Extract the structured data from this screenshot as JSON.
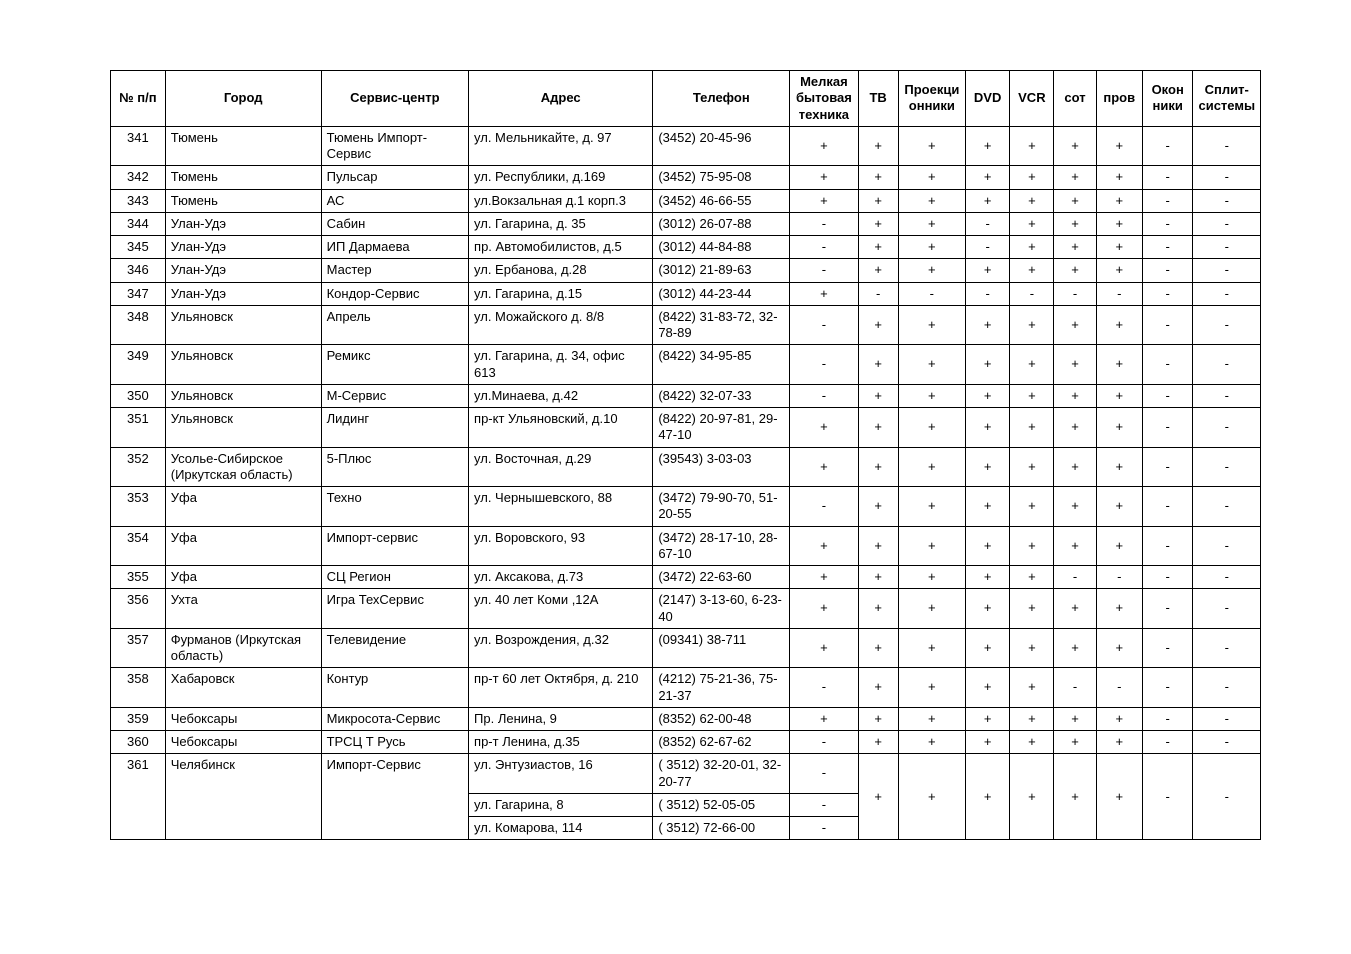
{
  "columns": [
    {
      "key": "n",
      "label": "№ п/п",
      "align": "center"
    },
    {
      "key": "city",
      "label": "Город",
      "align": "center"
    },
    {
      "key": "service",
      "label": "Сервис-центр",
      "align": "center"
    },
    {
      "key": "address",
      "label": "Адрес",
      "align": "center"
    },
    {
      "key": "phone",
      "label": "Телефон",
      "align": "center"
    },
    {
      "key": "small",
      "label": "Мелкая бытовая техника",
      "align": "center"
    },
    {
      "key": "tv",
      "label": "ТВ",
      "align": "center"
    },
    {
      "key": "proj",
      "label": "Проекци онники",
      "align": "center"
    },
    {
      "key": "dvd",
      "label": "DVD",
      "align": "center"
    },
    {
      "key": "vcr",
      "label": "VCR",
      "align": "center"
    },
    {
      "key": "sot",
      "label": "сот",
      "align": "center"
    },
    {
      "key": "prov",
      "label": "пров",
      "align": "center"
    },
    {
      "key": "okon",
      "label": "Окон ники",
      "align": "center"
    },
    {
      "key": "split",
      "label": "Сплит-системы",
      "align": "left"
    }
  ],
  "rows": [
    {
      "n": "341",
      "city": "Тюмень",
      "service": "Тюмень Импорт-Сервис",
      "address": "ул. Мельникайте, д. 97",
      "phone": "(3452) 20-45-96",
      "small": "+",
      "tv": "+",
      "proj": "+",
      "dvd": "+",
      "vcr": "+",
      "sot": "+",
      "prov": "+",
      "okon": "-",
      "split": "-"
    },
    {
      "n": "342",
      "city": "Тюмень",
      "service": "Пульсар",
      "address": "ул. Республики, д.169",
      "phone": "(3452) 75-95-08",
      "small": "+",
      "tv": "+",
      "proj": "+",
      "dvd": "+",
      "vcr": "+",
      "sot": "+",
      "prov": "+",
      "okon": "-",
      "split": "-"
    },
    {
      "n": "343",
      "city": "Тюмень",
      "service": "АС",
      "address": "ул.Вокзальная д.1 корп.3",
      "phone": "(3452) 46-66-55",
      "small": "+",
      "tv": "+",
      "proj": "+",
      "dvd": "+",
      "vcr": "+",
      "sot": "+",
      "prov": "+",
      "okon": "-",
      "split": "-"
    },
    {
      "n": "344",
      "city": "Улан-Удэ",
      "service": "Сабин",
      "address": "ул. Гагарина, д. 35",
      "phone": "(3012) 26-07-88",
      "small": "-",
      "tv": "+",
      "proj": "+",
      "dvd": "-",
      "vcr": "+",
      "sot": "+",
      "prov": "+",
      "okon": "-",
      "split": "-"
    },
    {
      "n": "345",
      "city": "Улан-Удэ",
      "service": "ИП Дармаева",
      "address": "пр. Автомобилистов, д.5",
      "phone": "(3012) 44-84-88",
      "small": "-",
      "tv": "+",
      "proj": "+",
      "dvd": "-",
      "vcr": "+",
      "sot": "+",
      "prov": "+",
      "okon": "-",
      "split": "-"
    },
    {
      "n": "346",
      "city": "Улан-Удэ",
      "service": "Мастер",
      "address": "ул. Ербанова, д.28",
      "phone": "(3012) 21-89-63",
      "small": "-",
      "tv": "+",
      "proj": "+",
      "dvd": "+",
      "vcr": "+",
      "sot": "+",
      "prov": "+",
      "okon": "-",
      "split": "-"
    },
    {
      "n": "347",
      "city": "Улан-Удэ",
      "service": "Кондор-Сервис",
      "address": "ул. Гагарина, д.15",
      "phone": "(3012) 44-23-44",
      "small": "+",
      "tv": "-",
      "proj": "-",
      "dvd": "-",
      "vcr": "-",
      "sot": "-",
      "prov": "-",
      "okon": "-",
      "split": "-"
    },
    {
      "n": "348",
      "city": "Ульяновск",
      "service": "Апрель",
      "address": "ул. Можайского д. 8/8",
      "phone": "(8422) 31-83-72, 32-78-89",
      "small": "-",
      "tv": "+",
      "proj": "+",
      "dvd": "+",
      "vcr": "+",
      "sot": "+",
      "prov": "+",
      "okon": "-",
      "split": "-"
    },
    {
      "n": "349",
      "city": "Ульяновск",
      "service": "Ремикс",
      "address": "ул. Гагарина, д. 34, офис 613",
      "phone": "(8422) 34-95-85",
      "small": "-",
      "tv": "+",
      "proj": "+",
      "dvd": "+",
      "vcr": "+",
      "sot": "+",
      "prov": "+",
      "okon": "-",
      "split": "-"
    },
    {
      "n": "350",
      "city": "Ульяновск",
      "service": "М-Сервис",
      "address": "ул.Минаева, д.42",
      "phone": "(8422) 32-07-33",
      "small": "-",
      "tv": "+",
      "proj": "+",
      "dvd": "+",
      "vcr": "+",
      "sot": "+",
      "prov": "+",
      "okon": "-",
      "split": "-"
    },
    {
      "n": "351",
      "city": "Ульяновск",
      "service": "Лидинг",
      "address": "пр-кт Ульяновский, д.10",
      "phone": "(8422) 20-97-81, 29-47-10",
      "small": "+",
      "tv": "+",
      "proj": "+",
      "dvd": "+",
      "vcr": "+",
      "sot": "+",
      "prov": "+",
      "okon": "-",
      "split": "-"
    },
    {
      "n": "352",
      "city": "Усолье-Сибирское (Иркутская область)",
      "service": "5-Плюс",
      "address": "ул. Восточная, д.29",
      "phone": "(39543) 3-03-03",
      "small": "+",
      "tv": "+",
      "proj": "+",
      "dvd": "+",
      "vcr": "+",
      "sot": "+",
      "prov": "+",
      "okon": "-",
      "split": "-"
    },
    {
      "n": "353",
      "city": "Уфа",
      "service": "Техно",
      "address": "ул. Чернышевского, 88",
      "phone": "(3472) 79-90-70, 51-20-55",
      "small": "-",
      "tv": "+",
      "proj": "+",
      "dvd": "+",
      "vcr": "+",
      "sot": "+",
      "prov": "+",
      "okon": "-",
      "split": "-"
    },
    {
      "n": "354",
      "city": "Уфа",
      "service": "Импорт-сервис",
      "address": "ул. Воровского, 93",
      "phone": "(3472) 28-17-10, 28-67-10",
      "small": "+",
      "tv": "+",
      "proj": "+",
      "dvd": "+",
      "vcr": "+",
      "sot": "+",
      "prov": "+",
      "okon": "-",
      "split": "-"
    },
    {
      "n": "355",
      "city": "Уфа",
      "service": "СЦ Регион",
      "address": "ул. Аксакова, д.73",
      "phone": "(3472) 22-63-60",
      "small": "+",
      "tv": "+",
      "proj": "+",
      "dvd": "+",
      "vcr": "+",
      "sot": "-",
      "prov": "-",
      "okon": "-",
      "split": "-"
    },
    {
      "n": "356",
      "city": "Ухта",
      "service": "Игра ТехСервис",
      "address": "ул. 40 лет Коми ,12А",
      "phone": "(2147) 3-13-60, 6-23-40",
      "small": "+",
      "tv": "+",
      "proj": "+",
      "dvd": "+",
      "vcr": "+",
      "sot": "+",
      "prov": "+",
      "okon": "-",
      "split": "-"
    },
    {
      "n": "357",
      "city": "Фурманов (Иркутская область)",
      "service": "Телевидение",
      "address": "ул. Возрождения, д.32",
      "phone": "(09341) 38-711",
      "small": "+",
      "tv": "+",
      "proj": "+",
      "dvd": "+",
      "vcr": "+",
      "sot": "+",
      "prov": "+",
      "okon": "-",
      "split": "-"
    },
    {
      "n": "358",
      "city": "Хабаровск",
      "service": "Контур",
      "address": "пр-т 60 лет Октября, д. 210",
      "phone": "(4212) 75-21-36, 75-21-37",
      "small": "-",
      "tv": "+",
      "proj": "+",
      "dvd": "+",
      "vcr": "+",
      "sot": "-",
      "prov": "-",
      "okon": "-",
      "split": "-"
    },
    {
      "n": "359",
      "city": "Чебоксары",
      "service": "Микросота-Сервис",
      "address": "Пр. Ленина, 9",
      "phone": "(8352) 62-00-48",
      "small": "+",
      "tv": "+",
      "proj": "+",
      "dvd": "+",
      "vcr": "+",
      "sot": "+",
      "prov": "+",
      "okon": "-",
      "split": "-"
    },
    {
      "n": "360",
      "city": "Чебоксары",
      "service": "ТРСЦ Т  Русь",
      "address": "пр-т Ленина, д.35",
      "phone": "(8352) 62-67-62",
      "small": "-",
      "tv": "+",
      "proj": "+",
      "dvd": "+",
      "vcr": "+",
      "sot": "+",
      "prov": "+",
      "okon": "-",
      "split": "-"
    }
  ],
  "multi": {
    "n": "361",
    "city": "Челябинск",
    "service": "Импорт-Сервис",
    "lines": [
      {
        "address": "ул. Энтузиастов, 16",
        "phone": "( 3512) 32-20-01, 32-20-77",
        "small": "-",
        "tv": "",
        "proj": "",
        "dvd": "",
        "vcr": "",
        "sot": "",
        "prov": "",
        "okon": "",
        "split": ""
      },
      {
        "address": "ул. Гагарина, 8",
        "phone": "( 3512) 52-05-05",
        "small": "-",
        "tv": "+",
        "proj": "+",
        "dvd": "+",
        "vcr": "+",
        "sot": "+",
        "prov": "+",
        "okon": "-",
        "split": "-"
      },
      {
        "address": "ул. Комарова, 114",
        "phone": "( 3512) 72-66-00",
        "small": "-",
        "tv": "",
        "proj": "",
        "dvd": "",
        "vcr": "",
        "sot": "",
        "prov": "",
        "okon": "",
        "split": ""
      }
    ]
  }
}
